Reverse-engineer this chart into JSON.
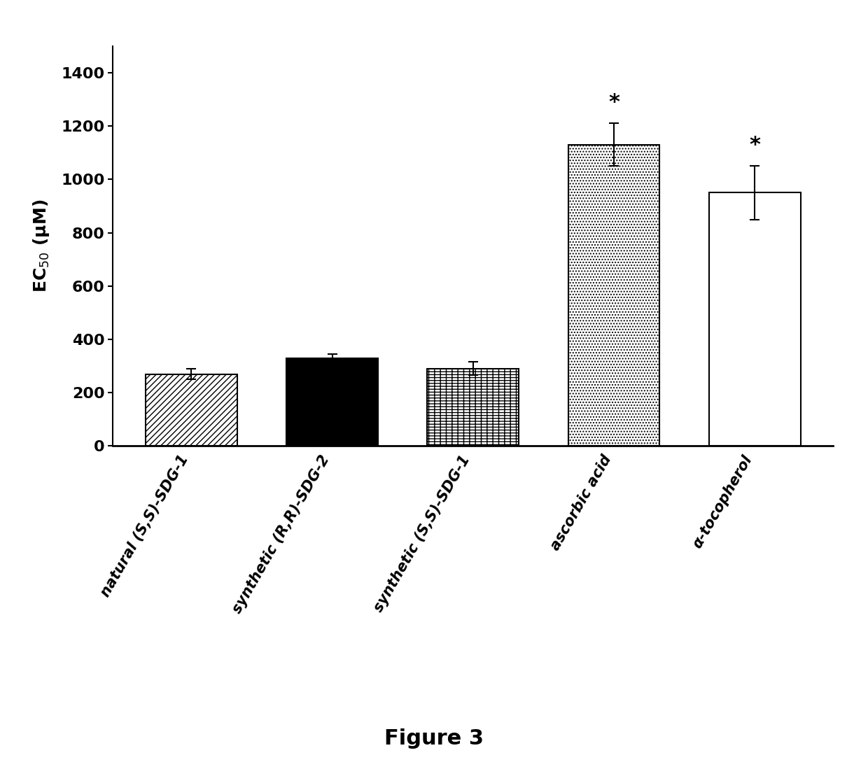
{
  "categories": [
    "natural (S,S)-SDG-1",
    "synthetic (R,R)-SDG-2",
    "synthetic (S,S)-SDG-1",
    "ascorbic acid",
    "α-tocopherol"
  ],
  "values": [
    270,
    330,
    290,
    1130,
    950
  ],
  "errors": [
    20,
    15,
    25,
    80,
    100
  ],
  "hatches": [
    "////",
    "",
    "++--",
    "....",
    "===="
  ],
  "facecolors": [
    "white",
    "black",
    "white",
    "white",
    "white"
  ],
  "edgecolors": [
    "black",
    "black",
    "black",
    "black",
    "black"
  ],
  "asterisks": [
    false,
    false,
    false,
    true,
    true
  ],
  "ylabel": "EC$_{50}$ (μM)",
  "ylim": [
    0,
    1500
  ],
  "yticks": [
    0,
    200,
    400,
    600,
    800,
    1000,
    1200,
    1400
  ],
  "figure_caption": "Figure 3",
  "bar_width": 0.65,
  "label_fontsize": 18,
  "tick_fontsize": 16,
  "asterisk_fontsize": 22,
  "caption_fontsize": 22,
  "xlabel_fontsize": 15
}
